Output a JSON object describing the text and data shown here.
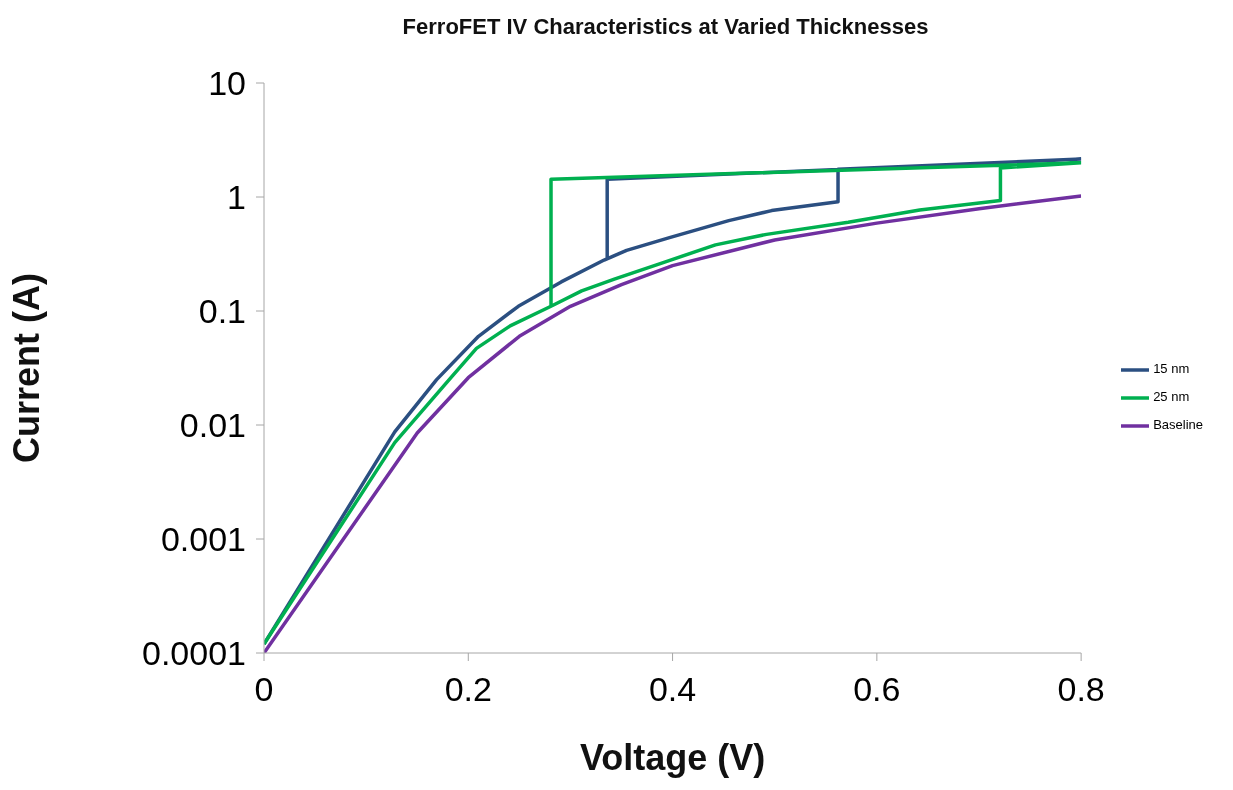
{
  "chart_data": {
    "type": "line",
    "title": "FerroFET IV Characteristics at Varied Thicknesses",
    "xlabel": "Voltage (V)",
    "ylabel": "Current (A)",
    "log": "y",
    "legend": "right",
    "xlim": [
      0,
      0.8
    ],
    "xticks": [
      0,
      0.2,
      0.4,
      0.6,
      0.8
    ],
    "ylim": [
      0.0001,
      10
    ],
    "yticks": [
      0.0001,
      0.001,
      0.01,
      0.1,
      1,
      10
    ],
    "series": [
      {
        "name": "15 nm",
        "color": "#2b4f81",
        "x": [
          0,
          0.128,
          0.169,
          0.21,
          0.249,
          0.291,
          0.333,
          0.355,
          0.397,
          0.455,
          0.497,
          0.562,
          0.562,
          0.8,
          0.336,
          0.336
        ],
        "values": [
          0.00012,
          0.0087,
          0.025,
          0.06,
          0.11,
          0.18,
          0.28,
          0.34,
          0.44,
          0.62,
          0.76,
          0.91,
          1.75,
          2.15,
          1.43,
          0.28
        ]
      },
      {
        "name": "25 nm",
        "color": "#00b050",
        "x": [
          0,
          0.128,
          0.183,
          0.208,
          0.241,
          0.281,
          0.311,
          0.343,
          0.393,
          0.442,
          0.492,
          0.572,
          0.642,
          0.721,
          0.721,
          0.8,
          0.281,
          0.281
        ],
        "values": [
          0.00012,
          0.007,
          0.026,
          0.047,
          0.074,
          0.11,
          0.15,
          0.19,
          0.27,
          0.38,
          0.47,
          0.6,
          0.77,
          0.93,
          1.8,
          2.0,
          1.43,
          0.11
        ]
      },
      {
        "name": "Baseline",
        "color": "#7030a0",
        "x": [
          0,
          0.15,
          0.2,
          0.25,
          0.3,
          0.35,
          0.4,
          0.5,
          0.6,
          0.7,
          0.8
        ],
        "values": [
          0.0001,
          0.0085,
          0.026,
          0.06,
          0.11,
          0.17,
          0.25,
          0.42,
          0.59,
          0.79,
          1.02
        ]
      }
    ]
  }
}
